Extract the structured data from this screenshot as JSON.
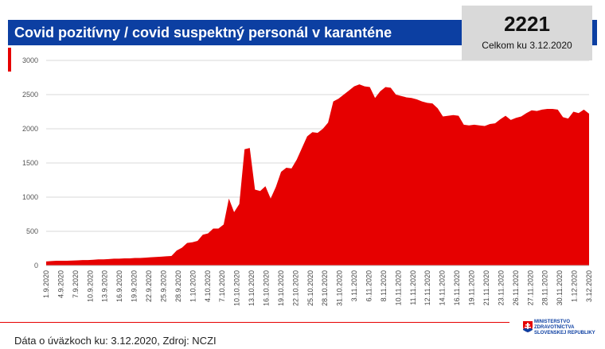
{
  "header": {
    "title": "Covid pozitívny / covid suspektný personál v karanténe",
    "total_value": "2221",
    "total_caption": "Celkom ku 3.12.2020"
  },
  "footer": {
    "source": "Dáta o úväzkoch ku: 3.12.2020, Zdroj: NCZI",
    "logo_text": "MINISTERSTVO ZDRAVOTNÍCTVA SLOVENSKEJ REPUBLIKY"
  },
  "colors": {
    "accent": "#e60000",
    "header": "#0c3fa2",
    "box": "#d9d9d9"
  },
  "chart_data": {
    "type": "area",
    "title": "Covid pozitívny / covid suspektný personál v karanténe",
    "ylim": [
      0,
      3000
    ],
    "yticks": [
      0,
      500,
      1000,
      1500,
      2000,
      2500,
      3000
    ],
    "grid": true,
    "x_tick_labels": [
      "1.9.2020",
      "4.9.2020",
      "7.9.2020",
      "10.9.2020",
      "13.9.2020",
      "16.9.2020",
      "19.9.2020",
      "22.9.2020",
      "25.9.2020",
      "28.9.2020",
      "1.10.2020",
      "4.10.2020",
      "7.10.2020",
      "10.10.2020",
      "13.10.2020",
      "16.10.2020",
      "19.10.2020",
      "22.10.2020",
      "25.10.2020",
      "28.10.2020",
      "31.10.2020",
      "3.11.2020",
      "6.11.2020",
      "8.11.2020",
      "10.11.2020",
      "11.11.2020",
      "12.11.2020",
      "14.11.2020",
      "16.11.2020",
      "19.11.2020",
      "21.11.2020",
      "23.11.2020",
      "26.11.2020",
      "27.11.2020",
      "28.11.2020",
      "30.11.2020",
      "1.12.2020",
      "3.12.2020"
    ],
    "series": [
      {
        "values": [
          60,
          65,
          70,
          70,
          70,
          72,
          75,
          80,
          80,
          85,
          90,
          90,
          95,
          100,
          100,
          105,
          105,
          110,
          110,
          115,
          120,
          125,
          130,
          135,
          140,
          220,
          260,
          330,
          340,
          360,
          450,
          470,
          540,
          540,
          600,
          980,
          780,
          900,
          1700,
          1720,
          1110,
          1090,
          1160,
          980,
          1150,
          1370,
          1430,
          1420,
          1550,
          1720,
          1890,
          1950,
          1940,
          2000,
          2090,
          2400,
          2440,
          2500,
          2560,
          2620,
          2650,
          2620,
          2610,
          2450,
          2550,
          2610,
          2600,
          2500,
          2480,
          2460,
          2450,
          2430,
          2400,
          2380,
          2370,
          2300,
          2180,
          2190,
          2200,
          2190,
          2060,
          2050,
          2060,
          2050,
          2040,
          2070,
          2080,
          2140,
          2190,
          2130,
          2160,
          2180,
          2230,
          2270,
          2260,
          2280,
          2290,
          2290,
          2280,
          2170,
          2150,
          2250,
          2230,
          2280,
          2221
        ]
      }
    ]
  }
}
